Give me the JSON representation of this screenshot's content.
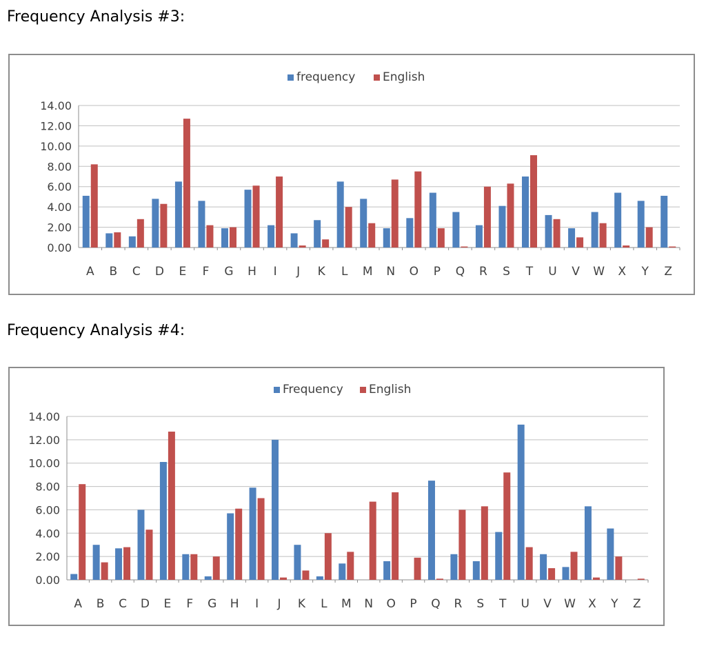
{
  "titles": {
    "analysis3": "Frequency Analysis #3:",
    "analysis4": "Frequency Analysis #4:"
  },
  "colors": {
    "series1": "#4f81bd",
    "series2": "#c0504d",
    "grid": "#bfbfbf"
  },
  "chart_data": [
    {
      "type": "bar",
      "legend_position": "top",
      "ylim": [
        0,
        14
      ],
      "yticks": [
        "0.00",
        "2.00",
        "4.00",
        "6.00",
        "8.00",
        "10.00",
        "12.00",
        "14.00"
      ],
      "categories": [
        "A",
        "B",
        "C",
        "D",
        "E",
        "F",
        "G",
        "H",
        "I",
        "J",
        "K",
        "L",
        "M",
        "N",
        "O",
        "P",
        "Q",
        "R",
        "S",
        "T",
        "U",
        "V",
        "W",
        "X",
        "Y",
        "Z"
      ],
      "series": [
        {
          "name": "frequency",
          "values": [
            5.1,
            1.4,
            1.1,
            4.8,
            6.5,
            4.6,
            1.9,
            5.7,
            2.2,
            1.4,
            2.7,
            6.5,
            4.8,
            1.9,
            2.9,
            5.4,
            3.5,
            2.2,
            4.1,
            7.0,
            3.2,
            1.9,
            3.5,
            5.4,
            4.6,
            5.1
          ]
        },
        {
          "name": "English",
          "values": [
            8.2,
            1.5,
            2.8,
            4.3,
            12.7,
            2.2,
            2.0,
            6.1,
            7.0,
            0.2,
            0.8,
            4.0,
            2.4,
            6.7,
            7.5,
            1.9,
            0.1,
            6.0,
            6.3,
            9.1,
            2.8,
            1.0,
            2.4,
            0.2,
            2.0,
            0.1
          ]
        }
      ]
    },
    {
      "type": "bar",
      "legend_position": "top",
      "ylim": [
        0,
        14
      ],
      "yticks": [
        "0.00",
        "2.00",
        "4.00",
        "6.00",
        "8.00",
        "10.00",
        "12.00",
        "14.00"
      ],
      "categories": [
        "A",
        "B",
        "C",
        "D",
        "E",
        "F",
        "G",
        "H",
        "I",
        "J",
        "K",
        "L",
        "M",
        "N",
        "O",
        "P",
        "Q",
        "R",
        "S",
        "T",
        "U",
        "V",
        "W",
        "X",
        "Y",
        "Z"
      ],
      "series": [
        {
          "name": "Frequency",
          "values": [
            0.5,
            3.0,
            2.7,
            6.0,
            10.1,
            2.2,
            0.3,
            5.7,
            7.9,
            12.0,
            3.0,
            0.3,
            1.4,
            0.0,
            1.6,
            0.0,
            8.5,
            2.2,
            1.6,
            4.1,
            13.3,
            2.2,
            1.1,
            6.3,
            4.4,
            0.0
          ]
        },
        {
          "name": "English",
          "values": [
            8.2,
            1.5,
            2.8,
            4.3,
            12.7,
            2.2,
            2.0,
            6.1,
            7.0,
            0.2,
            0.8,
            4.0,
            2.4,
            6.7,
            7.5,
            1.9,
            0.1,
            6.0,
            6.3,
            9.2,
            2.8,
            1.0,
            2.4,
            0.2,
            2.0,
            0.1
          ]
        }
      ]
    }
  ]
}
